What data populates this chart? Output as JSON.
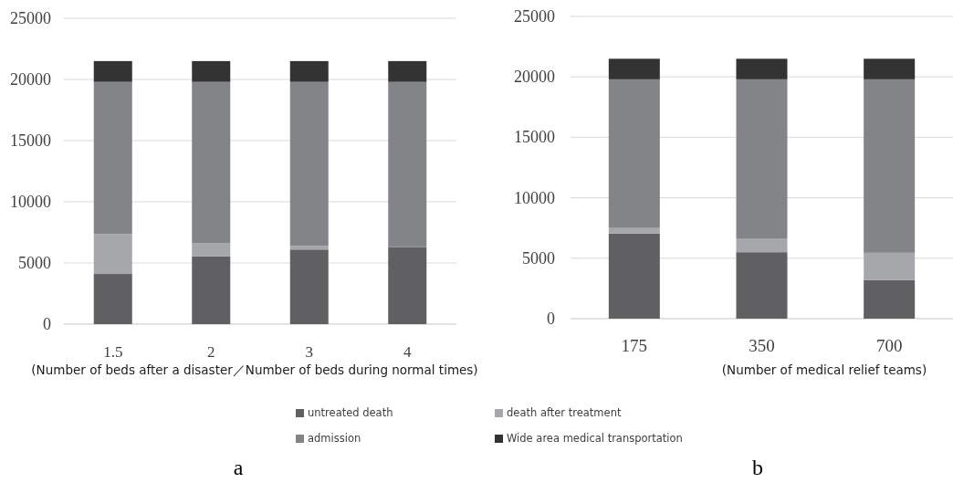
{
  "chart_data": [
    {
      "type": "bar",
      "stacked": true,
      "categories": [
        "1.5",
        "2",
        "3",
        "4"
      ],
      "xlabel": "(Number of beds after a disaster／Number of beds during normal times)",
      "ylim": [
        0,
        25000
      ],
      "yticks": [
        0,
        5000,
        10000,
        15000,
        20000,
        25000
      ],
      "grid": "y",
      "legend": "bottom",
      "annotations": [
        "a"
      ],
      "series": [
        {
          "name": "untreated death",
          "color": "#606062",
          "values": [
            4100,
            5550,
            6100,
            6300
          ]
        },
        {
          "name": "death after treatment",
          "color": "#a6a7aa",
          "values": [
            3250,
            1050,
            300,
            0
          ]
        },
        {
          "name": "admission",
          "color": "#838488",
          "values": [
            12450,
            13200,
            13400,
            13500
          ]
        },
        {
          "name": "Wide area medical transportation",
          "color": "#333333",
          "values": [
            1700,
            1700,
            1700,
            1700
          ]
        }
      ]
    },
    {
      "type": "bar",
      "stacked": true,
      "categories": [
        "175",
        "350",
        "700"
      ],
      "xlabel": "(Number of medical relief teams)",
      "ylim": [
        0,
        25000
      ],
      "yticks": [
        0,
        5000,
        10000,
        15000,
        20000,
        25000
      ],
      "grid": "y",
      "legend": "bottom",
      "annotations": [
        "b"
      ],
      "series": [
        {
          "name": "untreated death",
          "color": "#606062",
          "values": [
            7050,
            5500,
            3200
          ]
        },
        {
          "name": "death after treatment",
          "color": "#a6a7aa",
          "values": [
            450,
            1100,
            2250
          ]
        },
        {
          "name": "admission",
          "color": "#838488",
          "values": [
            12300,
            13200,
            14350
          ]
        },
        {
          "name": "Wide area medical transportation",
          "color": "#333333",
          "values": [
            1700,
            1700,
            1700
          ]
        }
      ]
    }
  ]
}
